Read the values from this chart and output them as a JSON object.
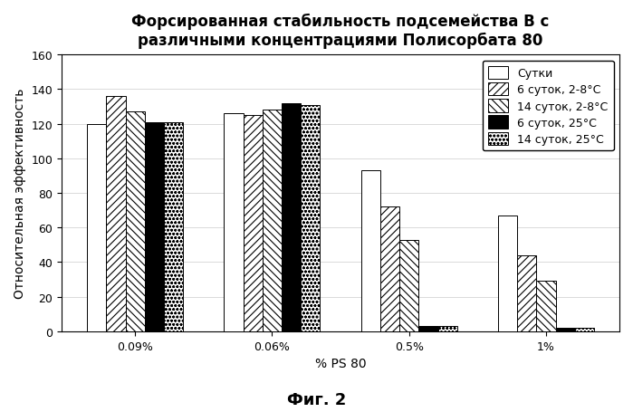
{
  "title": "Форсированная стабильность подсемейства B с\nразличными концентрациями Полисорбата 80",
  "xlabel": "% PS 80",
  "ylabel": "Относительная эффективность",
  "figcaption": "Фиг. 2",
  "categories": [
    "0.09%",
    "0.06%",
    "0.5%",
    "1%"
  ],
  "series": [
    {
      "label": "Сутки",
      "values": [
        120,
        126,
        93,
        67
      ],
      "facecolor": "white",
      "edgecolor": "black",
      "hatch": ""
    },
    {
      "label": "6 суток, 2-8°C",
      "values": [
        136,
        125,
        72,
        44
      ],
      "facecolor": "white",
      "edgecolor": "black",
      "hatch": "////"
    },
    {
      "label": "14 суток, 2-8°C",
      "values": [
        127,
        128,
        53,
        29
      ],
      "facecolor": "white",
      "edgecolor": "black",
      "hatch": "\\\\\\\\"
    },
    {
      "label": "6 суток, 25°C",
      "values": [
        121,
        132,
        3,
        2
      ],
      "facecolor": "black",
      "edgecolor": "black",
      "hatch": ""
    },
    {
      "label": "14 суток, 25°C",
      "values": [
        121,
        131,
        3,
        2
      ],
      "facecolor": "white",
      "edgecolor": "black",
      "hatch": "oooo"
    }
  ],
  "ylim": [
    0,
    160
  ],
  "yticks": [
    0,
    20,
    40,
    60,
    80,
    100,
    120,
    140,
    160
  ],
  "bar_width": 0.14,
  "background_color": "#ffffff",
  "title_fontsize": 12,
  "axis_fontsize": 10,
  "tick_fontsize": 9,
  "legend_fontsize": 9,
  "caption_fontsize": 13
}
